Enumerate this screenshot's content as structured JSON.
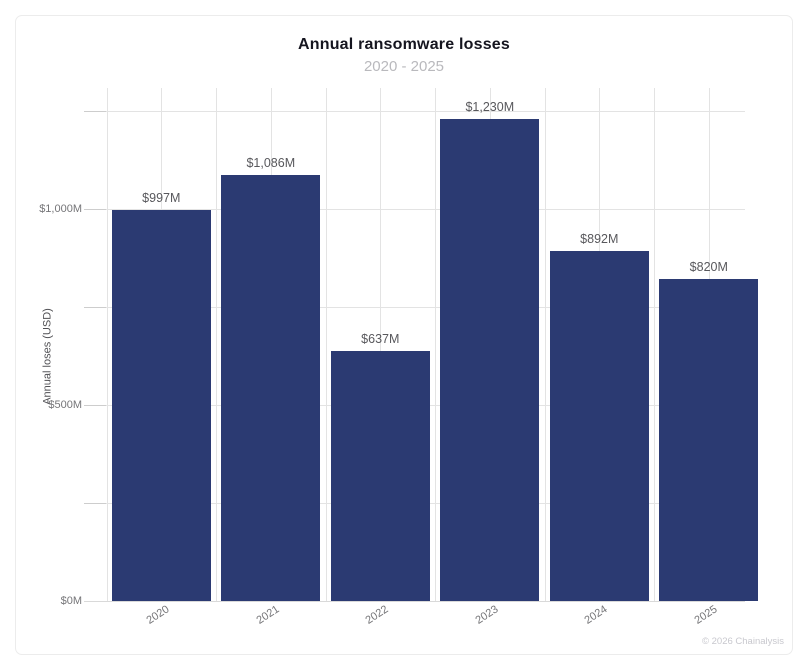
{
  "title": "Annual ransomware losses",
  "subtitle": "2020 - 2025",
  "footer": {
    "credit": "© 2026 Chainalysis"
  },
  "colors": {
    "bar": "#2b3a72",
    "grid": "#e3e3e3",
    "baseline": "#d9d9d9",
    "tick": "#cdcdcd",
    "title": "#15151f",
    "subtitle": "#b9b9bd",
    "value_label": "#58585c",
    "axis_label": "#757578",
    "credit": "#c8c8ce"
  },
  "chart_data": {
    "type": "bar",
    "title": "Annual ransomware losses",
    "subtitle": "2020 - 2025",
    "categories": [
      "2020",
      "2021",
      "2022",
      "2023",
      "2024",
      "2025"
    ],
    "values": [
      997,
      1086,
      637,
      1230,
      892,
      820
    ],
    "value_labels": [
      "$997M",
      "$1,086M",
      "$637M",
      "$1,230M",
      "$892M",
      "$820M"
    ],
    "xlabel": "",
    "ylabel": "Annual loses (USD)",
    "ylim": [
      0,
      1308
    ],
    "yticks": [
      {
        "value": 0,
        "label": "$0M"
      },
      {
        "value": 250,
        "label": ""
      },
      {
        "value": 500,
        "label": "$500M"
      },
      {
        "value": 750,
        "label": ""
      },
      {
        "value": 1000,
        "label": "$1,000M"
      },
      {
        "value": 1250,
        "label": ""
      }
    ],
    "grid": true,
    "legend": null,
    "bar_color": "#2b3a72"
  }
}
